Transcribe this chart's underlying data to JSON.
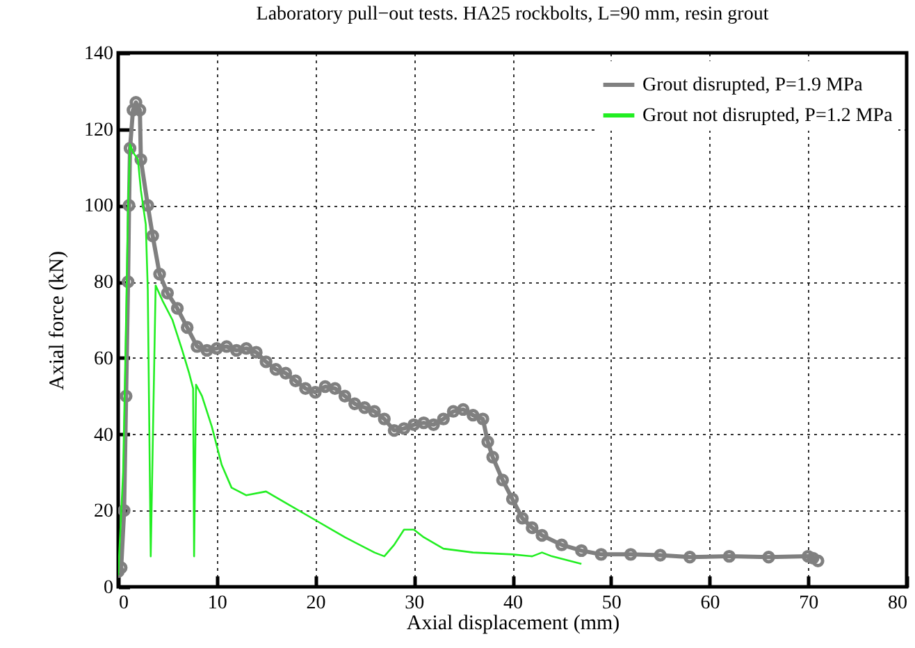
{
  "chart_data": {
    "type": "line",
    "title": "Laboratory pull−out tests. HA25 rockbolts, L=90 mm, resin grout",
    "xlabel": "Axial displacement (mm)",
    "ylabel": "Axial force (kN)",
    "xlim": [
      0,
      80
    ],
    "xticks": [
      0,
      10,
      20,
      30,
      40,
      50,
      60,
      70,
      80
    ],
    "ylim": [
      0,
      140
    ],
    "yticks": [
      0,
      20,
      40,
      60,
      80,
      100,
      120,
      140
    ],
    "grid": true,
    "legend": "top right",
    "line_style": "solid",
    "series": [
      {
        "name": "Grout disrupted, P=1.9 MPa",
        "color": "#808080",
        "marker": "circle",
        "x": [
          0,
          0.3,
          0.6,
          0.8,
          1.0,
          1.1,
          1.2,
          1.5,
          1.8,
          2.2,
          2.3,
          3,
          3.5,
          4.2,
          5,
          6,
          7,
          8,
          9,
          10,
          11,
          12,
          13,
          14,
          15,
          16,
          17,
          18,
          19,
          20,
          21,
          22,
          23,
          24,
          25,
          26,
          27,
          28,
          29,
          30,
          31,
          32,
          33,
          34,
          35,
          36,
          37,
          37.5,
          38,
          39,
          40,
          41,
          42,
          43,
          45,
          47,
          49,
          52,
          55,
          58,
          62,
          66,
          70,
          70.5,
          71
        ],
        "values": [
          4,
          5,
          20,
          50,
          80,
          100,
          115,
          125,
          127,
          125,
          112,
          100,
          92,
          82,
          77,
          73,
          68,
          63,
          62,
          62.5,
          63,
          62,
          62.5,
          61.5,
          59,
          57,
          56,
          54,
          52,
          51,
          52.5,
          52,
          50,
          48,
          47,
          46,
          44,
          41,
          41.5,
          42.5,
          43,
          42.5,
          44,
          46,
          46.5,
          45,
          44,
          38,
          34,
          28,
          23,
          18,
          15.5,
          13.5,
          11,
          9.5,
          8.5,
          8.5,
          8.3,
          7.8,
          8,
          7.8,
          8,
          7.5,
          6.8
        ]
      },
      {
        "name": "Grout not disrupted, P=1.2 MPa",
        "color": "#22ee22",
        "marker": "none",
        "x": [
          0,
          0.5,
          0.8,
          1.0,
          1.2,
          1.5,
          2,
          2.3,
          2.8,
          3.0,
          3.3,
          3.8,
          4.5,
          5.5,
          6.5,
          7.2,
          7.6,
          7.7,
          7.9,
          8.5,
          9.5,
          10.5,
          11.5,
          13,
          15,
          17,
          20,
          23,
          26,
          27,
          28,
          29,
          30,
          31,
          33,
          36,
          40,
          42,
          43,
          44,
          47
        ],
        "values": [
          3,
          30,
          70,
          100,
          116,
          114,
          112,
          104,
          95,
          78,
          8,
          79,
          75,
          70,
          62,
          56,
          52,
          8,
          53,
          50,
          42,
          32,
          26,
          24,
          25,
          22,
          17.5,
          13,
          9,
          8,
          11,
          15,
          15,
          13,
          10,
          9,
          8.5,
          8,
          9,
          8,
          6
        ]
      }
    ]
  }
}
